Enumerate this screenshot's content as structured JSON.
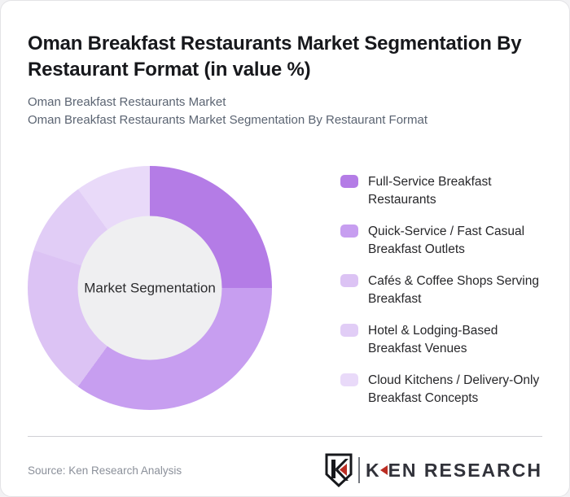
{
  "header": {
    "title": "Oman Breakfast Restaurants Market Segmentation By Restaurant Format (in value %)",
    "subtitle1": "Oman Breakfast Restaurants Market",
    "subtitle2": "Oman Breakfast Restaurants Market Segmentation By Restaurant Format"
  },
  "chart_data": {
    "type": "pie",
    "variant": "donut",
    "title": "Oman Breakfast Restaurants Market Segmentation By Restaurant Format (in value %)",
    "center_label": "Market Segmentation",
    "start_angle_deg": 0,
    "direction": "clockwise",
    "legend_position": "right",
    "inner_circle_color": "#efeff1",
    "segments": [
      {
        "label": "Full-Service Breakfast Restaurants",
        "value": 25,
        "color": "#b47ce6"
      },
      {
        "label": "Quick-Service / Fast Casual Breakfast Outlets",
        "value": 35,
        "color": "#c79ef0"
      },
      {
        "label": "Cafés & Coffee Shops Serving Breakfast",
        "value": 20,
        "color": "#dcc3f4"
      },
      {
        "label": "Hotel & Lodging-Based Breakfast Venues",
        "value": 10,
        "color": "#e1cdf6"
      },
      {
        "label": "Cloud Kitchens / Delivery-Only Breakfast Concepts",
        "value": 10,
        "color": "#e9daf9"
      }
    ]
  },
  "footer": {
    "source": "Source: Ken Research Analysis",
    "logo": {
      "monogram": "K",
      "brand_first_letter": "K",
      "brand_rest": "EN RESEARCH"
    }
  },
  "colors": {
    "accent_red": "#bb2d23",
    "divider": "#cfcfd4",
    "title_text": "#17181c",
    "subtitle_text": "#5b6472"
  }
}
